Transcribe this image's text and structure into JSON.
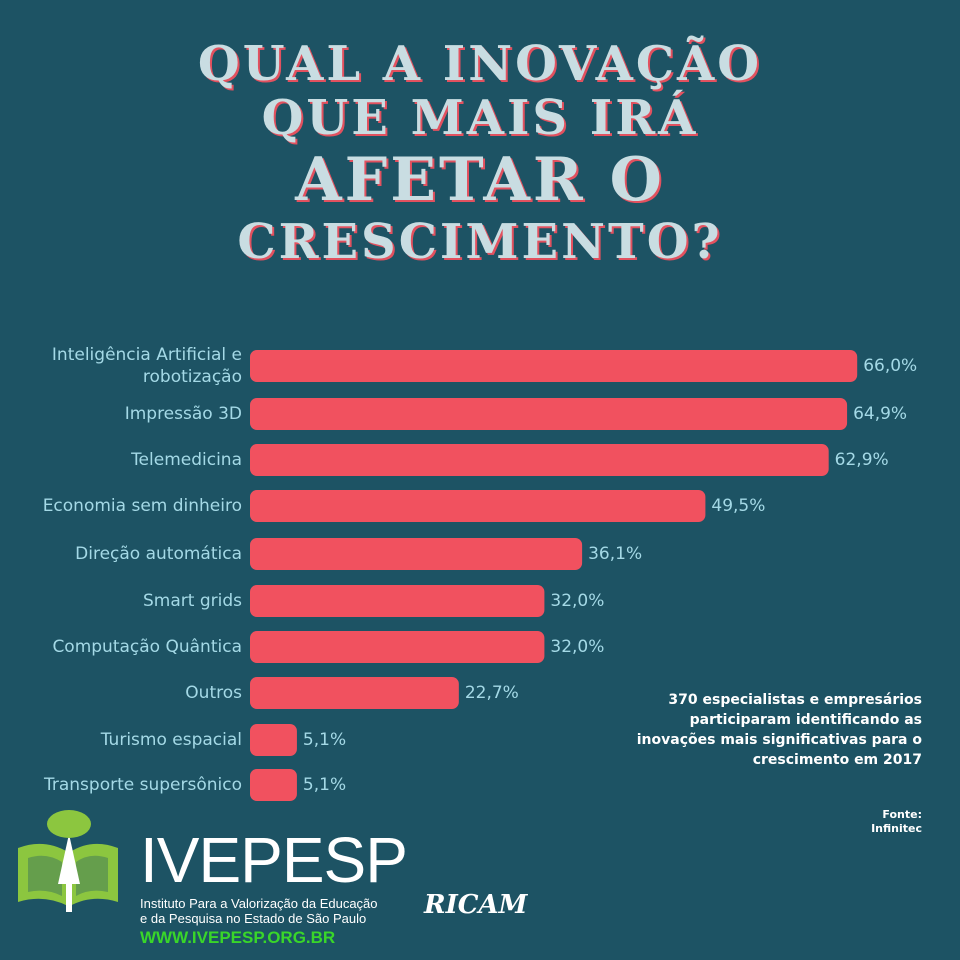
{
  "chart_data": {
    "type": "bar",
    "orientation": "horizontal",
    "title_lines": [
      "QUAL A INOVAÇÃO",
      "QUE MAIS IRÁ",
      "AFETAR O",
      "CRESCIMENTO?"
    ],
    "categories": [
      [
        "Inteligência Artificial e",
        "robotização"
      ],
      [
        "Impressão 3D"
      ],
      [
        "Telemedicina"
      ],
      [
        "Economia sem dinheiro"
      ],
      [
        "Direção automática"
      ],
      [
        "Smart grids"
      ],
      [
        "Computação Quântica"
      ],
      [
        "Outros"
      ],
      [
        "Turismo espacial"
      ],
      [
        "Transporte supersônico"
      ]
    ],
    "values": [
      66.0,
      64.9,
      62.9,
      49.5,
      36.1,
      32.0,
      32.0,
      22.7,
      5.1,
      5.1
    ],
    "value_labels": [
      "66,0%",
      "64,9%",
      "62,9%",
      "49,5%",
      "36,1%",
      "32,0%",
      "32,0%",
      "22,7%",
      "5,1%",
      "5,1%"
    ],
    "unit": "%",
    "bar_color": "#f1515f",
    "background_color": "#1d5364",
    "grid": false,
    "legend": "none"
  },
  "note": "370 especialistas e empresários participaram identificando as inovações mais significativas para o crescimento em 2017",
  "source_label": "Fonte:",
  "source_name": "Infinitec",
  "branding": {
    "name": "IVEPESP",
    "subtitle_line1": "Instituto Para a Valorização da Educação",
    "subtitle_line2": "e da Pesquisa no Estado de São Paulo",
    "url": "WWW.IVEPESP.ORG.BR",
    "partner": "RICAM",
    "logo_icon": "open-book-tree-icon"
  },
  "colors": {
    "title": "#c9dde2",
    "title_shadow": "#e2515f",
    "label": "#a4d9e6",
    "url": "#39d629",
    "logo_green": "#8cc63f"
  }
}
